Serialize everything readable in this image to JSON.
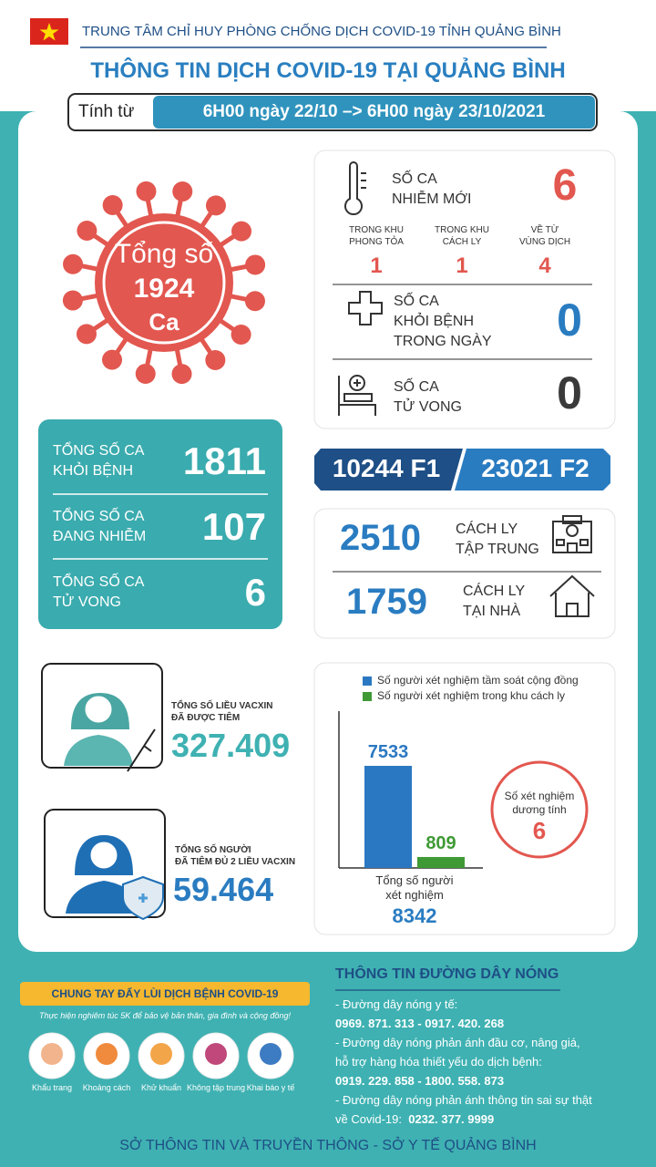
{
  "header": {
    "org": "TRUNG TÂM CHỈ HUY PHÒNG CHỐNG DỊCH COVID-19 TỈNH QUẢNG BÌNH",
    "title": "THÔNG TIN DỊCH COVID-19 TẠI QUẢNG BÌNH",
    "period_label": "Tính từ",
    "period": "6H00 ngày 22/10 –> 6H00 ngày 23/10/2021"
  },
  "total": {
    "label": "Tổng số",
    "value": "1924",
    "unit": "Ca"
  },
  "new_cases": {
    "label": [
      "SỐ CA",
      "NHIỄM MỚI"
    ],
    "value": "6",
    "breakdown": [
      {
        "label": [
          "TRONG KHU",
          "PHONG TỎA"
        ],
        "value": "1"
      },
      {
        "label": [
          "TRONG KHU",
          "CÁCH LY"
        ],
        "value": "1"
      },
      {
        "label": [
          "VỀ TỪ",
          "VÙNG DỊCH"
        ],
        "value": "4"
      }
    ]
  },
  "recovered_today": {
    "label": [
      "SỐ CA",
      "KHỎI BỆNH",
      "TRONG NGÀY"
    ],
    "value": "0"
  },
  "deaths_today": {
    "label": [
      "SỐ CA",
      "TỬ VONG"
    ],
    "value": "0"
  },
  "cumulative": [
    {
      "label": [
        "TỔNG SỐ CA",
        "KHỎI BỆNH"
      ],
      "value": "1811"
    },
    {
      "label": [
        "TỔNG SỐ CA",
        "ĐANG NHIỄM"
      ],
      "value": "107"
    },
    {
      "label": [
        "TỔNG SỐ CA",
        "TỬ VONG"
      ],
      "value": "6"
    }
  ],
  "contacts": [
    {
      "value": "10244",
      "label": "F1"
    },
    {
      "value": "23021",
      "label": "F2"
    }
  ],
  "isolation": [
    {
      "value": "2510",
      "label": [
        "CÁCH LY",
        "TẬP TRUNG"
      ]
    },
    {
      "value": "1759",
      "label": [
        "CÁCH LY",
        "TẠI NHÀ"
      ]
    }
  ],
  "vaccine": [
    {
      "label": [
        "TỔNG SỐ LIỀU VACXIN",
        "ĐÃ ĐƯỢC TIÊM"
      ],
      "value": "327.409"
    },
    {
      "label": [
        "TỔNG SỐ NGƯỜI",
        "ĐÃ TIÊM ĐỦ 2 LIỀU VACXIN"
      ],
      "value": "59.464"
    }
  ],
  "testing": {
    "series": [
      {
        "name": "Số người xét nghiệm tầm soát cộng đồng",
        "color": "#2b78c2",
        "value": 7533
      },
      {
        "name": "Số người xét nghiệm trong khu cách ly",
        "color": "#3f9a35",
        "value": 809
      }
    ],
    "total_label": [
      "Tổng số người",
      "xét nghiệm"
    ],
    "total": "8342",
    "positive_label": [
      "Số xét nghiệm",
      "dương tính"
    ],
    "positive": "6"
  },
  "campaign": {
    "title": "CHUNG TAY ĐẨY LÙI DỊCH BỆNH COVID-19",
    "subtitle": "Thực hiện nghiêm túc 5K để bảo vệ bản thân, gia đình và cộng đồng!",
    "items": [
      "Khẩu trang",
      "Khoảng cách",
      "Khử khuẩn",
      "Không tập trung",
      "Khai báo y tế"
    ]
  },
  "hotline": {
    "title": "THÔNG TIN ĐƯỜNG DÂY NÓNG",
    "items": [
      {
        "text": [
          "- Đường dây nóng y tế:"
        ],
        "numbers": "0969. 871. 313   -  0917. 420. 268"
      },
      {
        "text": [
          "- Đường dây nóng phản ánh đầu cơ, nâng giá,",
          "hỗ trợ hàng hóa thiết yếu do dịch bệnh:"
        ],
        "numbers": "0919. 229. 858   -  1800. 558. 873"
      },
      {
        "text": [
          "- Đường dây nóng phản ánh thông tin sai sự thật",
          "về Covid-19:"
        ],
        "numbers": "0232. 377. 9999"
      }
    ]
  },
  "footer": "SỞ THÔNG TIN VÀ TRUYỀN THÔNG - SỞ Y TẾ QUẢNG BÌNH"
}
